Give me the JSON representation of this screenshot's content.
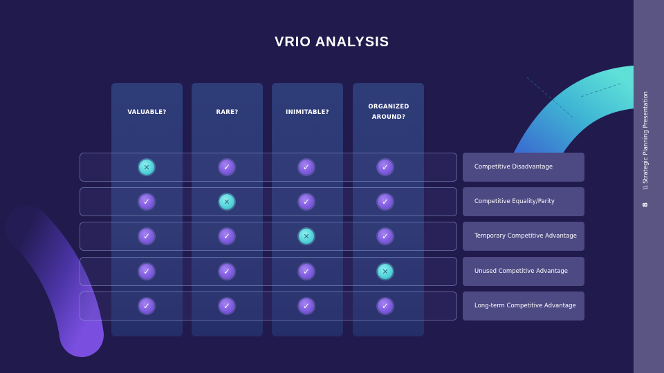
{
  "slide": {
    "title": "VRIO ANALYSIS",
    "page_number": "8",
    "caption": "\\\\ Strategic Planning Presentation"
  },
  "columns": [
    {
      "label": "VALUABLE?"
    },
    {
      "label": "RARE?"
    },
    {
      "label": "INIMITABLE?"
    },
    {
      "label": "ORGANIZED AROUND?"
    }
  ],
  "rows": [
    {
      "marks": [
        "no",
        "yes",
        "yes",
        "yes"
      ],
      "result": "Competitive Disadvantage"
    },
    {
      "marks": [
        "yes",
        "no",
        "yes",
        "yes"
      ],
      "result": "Competitive Equality/Parity"
    },
    {
      "marks": [
        "yes",
        "yes",
        "no",
        "yes"
      ],
      "result": "Temporary Competitive Advantage"
    },
    {
      "marks": [
        "yes",
        "yes",
        "yes",
        "no"
      ],
      "result": "Unused Competitive Advantage"
    },
    {
      "marks": [
        "yes",
        "yes",
        "yes",
        "yes"
      ],
      "result": "Long-term Competitive Advantage"
    }
  ],
  "icons": {
    "yes": "check-icon",
    "no": "cross-icon"
  },
  "colors": {
    "background": "#211a4d",
    "yes_mark": "#7c58dc",
    "no_mark": "#4fd0d8",
    "result_box": "#4d4983",
    "sidebar": "#5a5583"
  }
}
